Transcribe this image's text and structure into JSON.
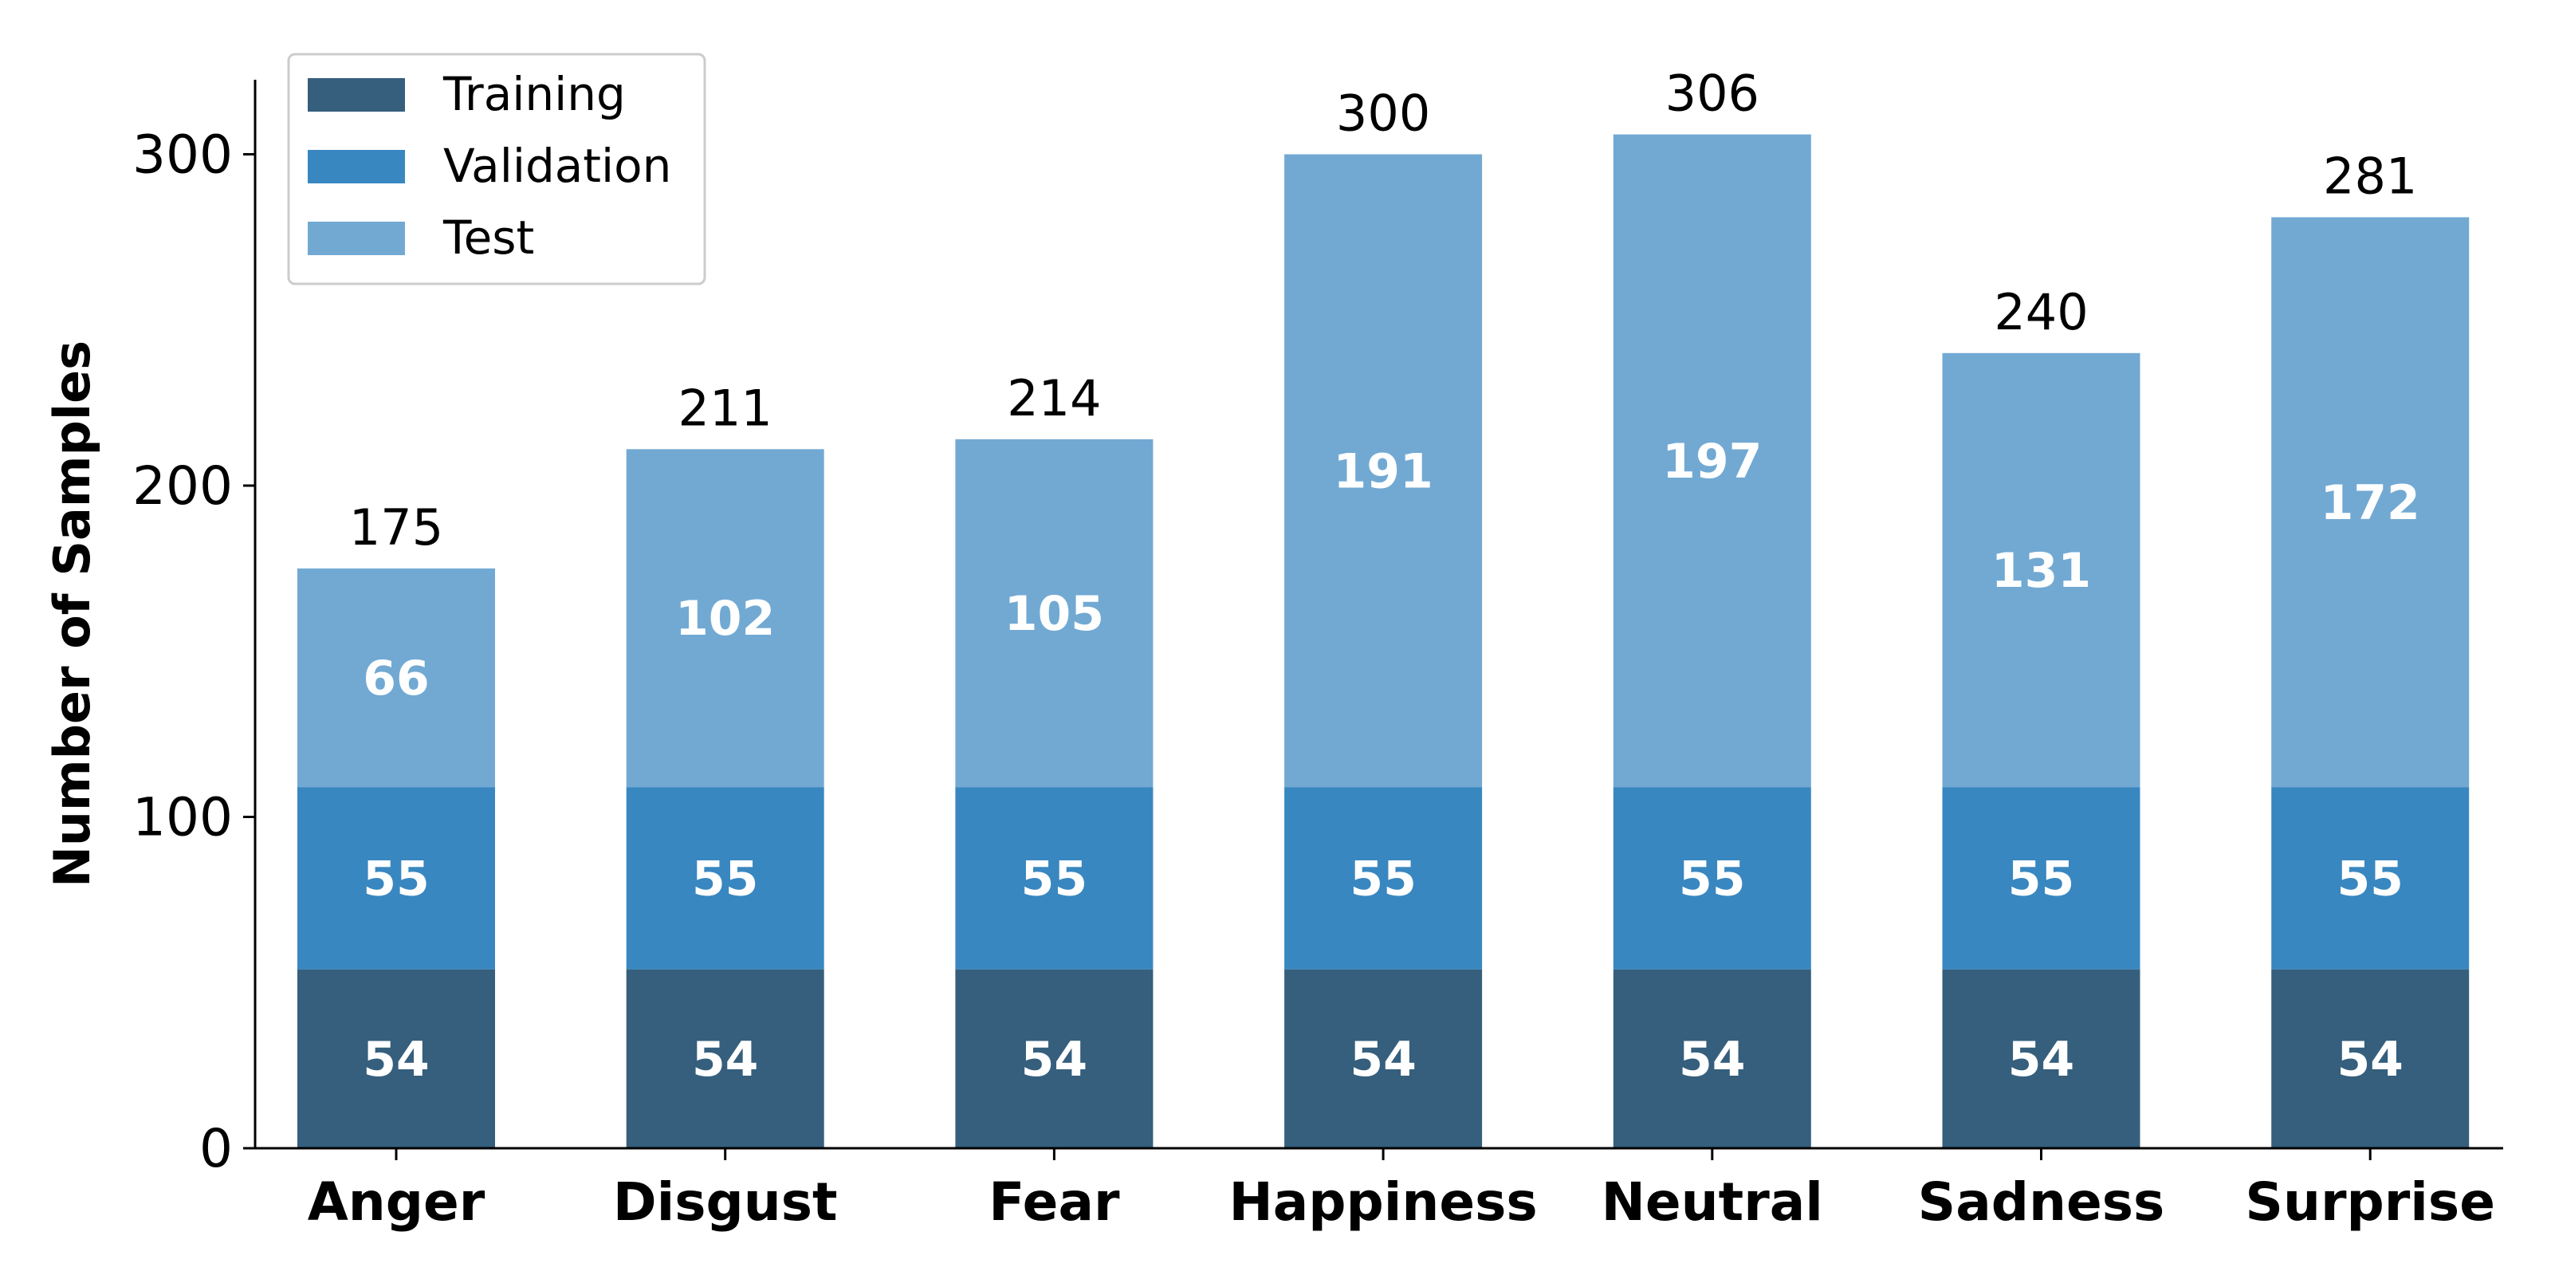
{
  "chart_data": {
    "type": "bar",
    "stacked": true,
    "categories": [
      "Anger",
      "Disgust",
      "Fear",
      "Happiness",
      "Neutral",
      "Sadness",
      "Surprise"
    ],
    "series": [
      {
        "name": "Training",
        "color": "#355f7d",
        "values": [
          54,
          54,
          54,
          54,
          54,
          54,
          54
        ]
      },
      {
        "name": "Validation",
        "color": "#3987c0",
        "values": [
          55,
          55,
          55,
          55,
          55,
          55,
          55
        ]
      },
      {
        "name": "Test",
        "color": "#72a9d3",
        "values": [
          66,
          102,
          105,
          191,
          197,
          131,
          172
        ]
      }
    ],
    "totals": [
      175,
      211,
      214,
      300,
      306,
      240,
      281
    ],
    "title": "",
    "xlabel": "",
    "ylabel": "Number of Samples",
    "ylim": [
      0,
      320
    ],
    "yticks": [
      0,
      100,
      200,
      300
    ],
    "grid": false,
    "legend_position": "top-left",
    "segment_label_color": "#ffffff"
  }
}
